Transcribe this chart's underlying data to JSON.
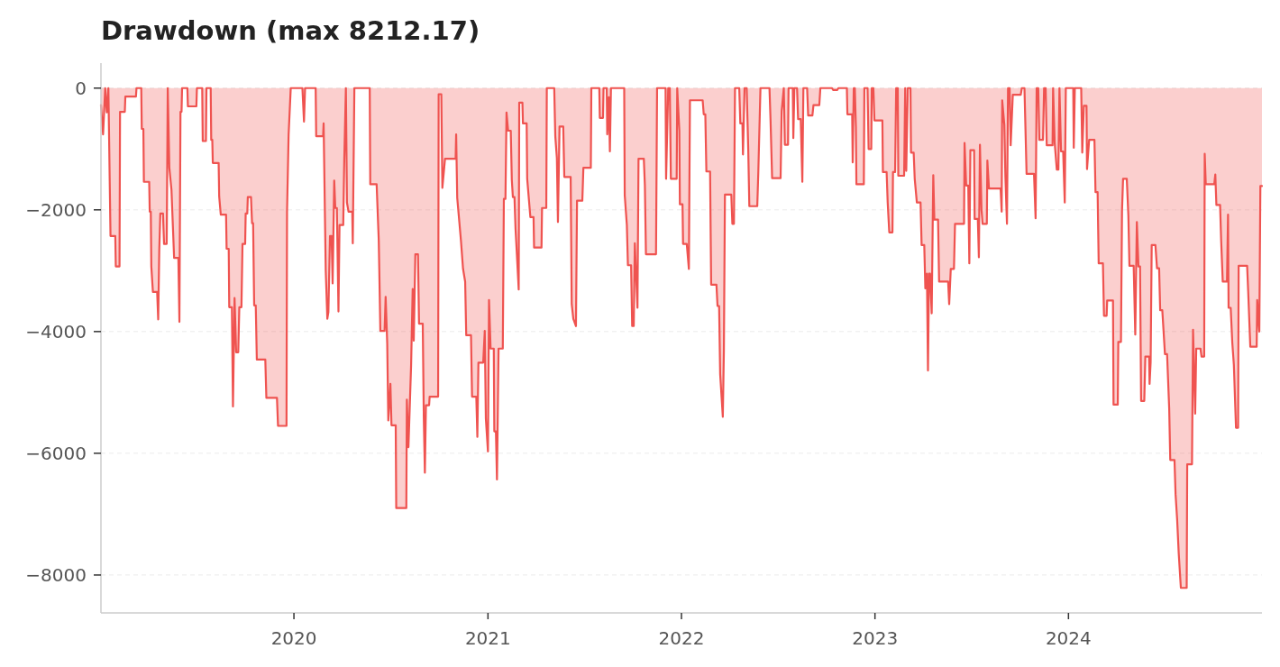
{
  "chart_data": {
    "type": "area",
    "title": "Drawdown (max 8212.17)",
    "color": "#ef5350",
    "grid": "y",
    "xlim": [
      "2019-01-02",
      "2024-12-31"
    ],
    "xticks": [
      {
        "value": "2020-01-01",
        "label": "2020"
      },
      {
        "value": "2021-01-01",
        "label": "2021"
      },
      {
        "value": "2022-01-01",
        "label": "2022"
      },
      {
        "value": "2023-01-01",
        "label": "2023"
      },
      {
        "value": "2024-01-01",
        "label": "2024"
      }
    ],
    "ylim": [
      -8623,
      411
    ],
    "yticks": [
      0,
      {
        "value": -2000,
        "label": "−2000"
      },
      {
        "value": -4000,
        "label": "−4000"
      },
      {
        "value": -6000,
        "label": "−6000"
      },
      {
        "value": -8000,
        "label": "−8000"
      }
    ],
    "x": [
      "2019-01-02",
      "2019-01-06",
      "2019-01-10",
      "2019-01-13",
      "2019-01-16",
      "2019-01-20",
      "2019-01-29",
      "2019-01-30",
      "2019-02-06",
      "2019-02-07",
      "2019-02-16",
      "2019-02-17",
      "2019-03-09",
      "2019-03-10",
      "2019-03-19",
      "2019-03-20",
      "2019-03-23",
      "2019-03-24",
      "2019-04-03",
      "2019-04-04",
      "2019-04-06",
      "2019-04-07",
      "2019-04-10",
      "2019-04-18",
      "2019-04-20",
      "2019-04-22",
      "2019-04-24",
      "2019-04-29",
      "2019-05-01",
      "2019-05-06",
      "2019-05-08",
      "2019-05-11",
      "2019-05-15",
      "2019-05-20",
      "2019-05-28",
      "2019-05-30",
      "2019-06-01",
      "2019-06-03",
      "2019-06-04",
      "2019-06-14",
      "2019-06-15",
      "2019-07-01",
      "2019-07-02",
      "2019-07-12",
      "2019-07-13",
      "2019-07-19",
      "2019-07-20",
      "2019-07-28",
      "2019-07-29",
      "2019-07-31",
      "2019-08-01",
      "2019-08-12",
      "2019-08-13",
      "2019-08-16",
      "2019-08-26",
      "2019-08-27",
      "2019-08-31",
      "2019-09-01",
      "2019-09-06",
      "2019-09-08",
      "2019-09-11",
      "2019-09-14",
      "2019-09-18",
      "2019-09-20",
      "2019-09-24",
      "2019-09-26",
      "2019-10-01",
      "2019-10-02",
      "2019-10-05",
      "2019-10-06",
      "2019-10-12",
      "2019-10-14",
      "2019-10-16",
      "2019-10-18",
      "2019-10-21",
      "2019-10-23",
      "2019-11-08",
      "2019-11-10",
      "2019-11-30",
      "2019-12-02",
      "2019-12-18",
      "2019-12-19",
      "2019-12-22",
      "2019-12-26",
      "2020-01-17",
      "2020-01-20",
      "2020-01-22",
      "2020-02-11",
      "2020-02-12",
      "2020-02-25",
      "2020-02-26",
      "2020-03-01",
      "2020-03-04",
      "2020-03-06",
      "2020-03-09",
      "2020-03-12",
      "2020-03-14",
      "2020-03-17",
      "2020-03-19",
      "2020-03-22",
      "2020-03-25",
      "2020-03-27",
      "2020-04-03",
      "2020-04-05",
      "2020-04-08",
      "2020-04-10",
      "2020-04-13",
      "2020-04-20",
      "2020-04-21",
      "2020-04-24",
      "2020-05-23",
      "2020-05-24",
      "2020-06-05",
      "2020-06-09",
      "2020-06-10",
      "2020-06-12",
      "2020-06-20",
      "2020-06-22",
      "2020-06-25",
      "2020-06-27",
      "2020-07-01",
      "2020-07-03",
      "2020-07-11",
      "2020-07-12",
      "2020-07-31",
      "2020-08-01",
      "2020-08-04",
      "2020-08-09",
      "2020-08-12",
      "2020-08-14",
      "2020-08-17",
      "2020-08-22",
      "2020-08-24",
      "2020-08-31",
      "2020-09-02",
      "2020-09-04",
      "2020-09-06",
      "2020-09-12",
      "2020-09-13",
      "2020-09-29",
      "2020-09-30",
      "2020-10-05",
      "2020-10-07",
      "2020-10-12",
      "2020-11-01",
      "2020-11-02",
      "2020-11-04",
      "2020-11-11",
      "2020-11-15",
      "2020-11-19",
      "2020-11-21",
      "2020-11-30",
      "2020-12-02",
      "2020-12-10",
      "2020-12-12",
      "2020-12-14",
      "2020-12-23",
      "2020-12-26",
      "2020-12-28",
      "2021-01-01",
      "2021-01-03",
      "2021-01-06",
      "2021-01-12",
      "2021-01-13",
      "2021-01-16",
      "2021-01-18",
      "2021-01-21",
      "2021-01-29",
      "2021-01-31",
      "2021-02-03",
      "2021-02-05",
      "2021-02-08",
      "2021-02-13",
      "2021-02-15",
      "2021-02-17",
      "2021-02-20",
      "2021-02-22",
      "2021-02-28",
      "2021-03-01",
      "2021-03-07",
      "2021-03-08",
      "2021-03-15",
      "2021-03-16",
      "2021-03-22",
      "2021-03-28",
      "2021-03-29",
      "2021-04-12",
      "2021-04-13",
      "2021-04-21",
      "2021-04-22",
      "2021-05-06",
      "2021-05-08",
      "2021-05-11",
      "2021-05-13",
      "2021-05-16",
      "2021-05-23",
      "2021-05-25",
      "2021-06-06",
      "2021-06-08",
      "2021-06-11",
      "2021-06-16",
      "2021-06-18",
      "2021-06-28",
      "2021-06-30",
      "2021-07-14",
      "2021-07-15",
      "2021-07-30",
      "2021-07-31",
      "2021-08-06",
      "2021-08-07",
      "2021-08-13",
      "2021-08-14",
      "2021-08-17",
      "2021-08-19",
      "2021-08-21",
      "2021-09-15",
      "2021-09-16",
      "2021-09-20",
      "2021-09-22",
      "2021-09-28",
      "2021-09-30",
      "2021-10-03",
      "2021-10-05",
      "2021-10-10",
      "2021-10-12",
      "2021-10-22",
      "2021-10-24",
      "2021-10-26",
      "2021-11-14",
      "2021-11-16",
      "2021-12-02",
      "2021-12-03",
      "2021-12-07",
      "2021-12-10",
      "2021-12-12",
      "2021-12-23",
      "2021-12-24",
      "2021-12-28",
      "2021-12-29",
      "2022-01-03",
      "2022-01-04",
      "2022-01-11",
      "2022-01-15",
      "2022-01-17",
      "2022-02-10",
      "2022-02-12",
      "2022-02-15",
      "2022-02-17",
      "2022-02-24",
      "2022-02-26",
      "2022-03-08",
      "2022-03-10",
      "2022-03-13",
      "2022-03-15",
      "2022-03-20",
      "2022-03-22",
      "2022-03-24",
      "2022-04-05",
      "2022-04-07",
      "2022-04-10",
      "2022-04-12",
      "2022-04-20",
      "2022-04-22",
      "2022-04-26",
      "2022-04-27",
      "2022-04-30",
      "2022-05-04",
      "2022-05-07",
      "2022-05-09",
      "2022-05-24",
      "2022-05-26",
      "2022-05-30",
      "2022-06-16",
      "2022-06-18",
      "2022-06-21",
      "2022-07-07",
      "2022-07-09",
      "2022-07-13",
      "2022-07-15",
      "2022-07-21",
      "2022-07-22",
      "2022-07-30",
      "2022-07-31",
      "2022-08-02",
      "2022-08-07",
      "2022-08-09",
      "2022-08-14",
      "2022-08-17",
      "2022-08-19",
      "2022-08-26",
      "2022-08-28",
      "2022-09-05",
      "2022-09-07",
      "2022-09-18",
      "2022-09-20",
      "2022-10-12",
      "2022-10-14",
      "2022-10-22",
      "2022-10-24",
      "2022-11-09",
      "2022-11-10",
      "2022-11-19",
      "2022-11-20",
      "2022-11-22",
      "2022-11-24",
      "2022-11-26",
      "2022-11-27",
      "2022-12-11",
      "2022-12-12",
      "2022-12-18",
      "2022-12-20",
      "2022-12-25",
      "2022-12-26",
      "2022-12-29",
      "2022-12-31",
      "2023-01-15",
      "2023-01-16",
      "2023-01-23",
      "2023-01-25",
      "2023-01-28",
      "2023-02-03",
      "2023-02-04",
      "2023-02-08",
      "2023-02-10",
      "2023-02-13",
      "2023-02-14",
      "2023-02-25",
      "2023-02-27",
      "2023-03-01",
      "2023-03-04",
      "2023-03-09",
      "2023-03-10",
      "2023-03-15",
      "2023-03-17",
      "2023-03-21",
      "2023-03-28",
      "2023-03-30",
      "2023-04-04",
      "2023-04-06",
      "2023-04-09",
      "2023-04-11",
      "2023-04-13",
      "2023-04-15",
      "2023-04-18",
      "2023-04-21",
      "2023-04-23",
      "2023-04-30",
      "2023-05-02",
      "2023-05-19",
      "2023-05-21",
      "2023-05-24",
      "2023-05-30",
      "2023-06-01",
      "2023-06-18",
      "2023-06-19",
      "2023-06-22",
      "2023-06-26",
      "2023-06-28",
      "2023-06-30",
      "2023-07-07",
      "2023-07-08",
      "2023-07-14",
      "2023-07-16",
      "2023-07-18",
      "2023-07-21",
      "2023-07-23",
      "2023-07-31",
      "2023-08-01",
      "2023-08-04",
      "2023-08-26",
      "2023-08-28",
      "2023-08-29",
      "2023-09-02",
      "2023-09-04",
      "2023-09-07",
      "2023-09-09",
      "2023-09-12",
      "2023-09-14",
      "2023-09-18",
      "2023-10-03",
      "2023-10-05",
      "2023-10-10",
      "2023-10-14",
      "2023-10-28",
      "2023-10-31",
      "2023-11-02",
      "2023-11-05",
      "2023-11-07",
      "2023-11-14",
      "2023-11-16",
      "2023-11-19",
      "2023-11-21",
      "2023-12-02",
      "2023-12-03",
      "2023-12-06",
      "2023-12-10",
      "2023-12-13",
      "2023-12-15",
      "2023-12-18",
      "2023-12-22",
      "2023-12-25",
      "2023-12-27",
      "2024-01-10",
      "2024-01-11",
      "2024-01-13",
      "2024-01-25",
      "2024-01-27",
      "2024-01-30",
      "2024-02-04",
      "2024-02-05",
      "2024-02-09",
      "2024-02-19",
      "2024-02-21",
      "2024-02-25",
      "2024-02-27",
      "2024-03-06",
      "2024-03-08",
      "2024-03-13",
      "2024-03-14",
      "2024-03-25",
      "2024-03-26",
      "2024-04-03",
      "2024-04-04",
      "2024-04-09",
      "2024-04-11",
      "2024-04-13",
      "2024-04-20",
      "2024-04-23",
      "2024-04-25",
      "2024-05-03",
      "2024-05-06",
      "2024-05-09",
      "2024-05-12",
      "2024-05-15",
      "2024-05-17",
      "2024-05-23",
      "2024-05-25",
      "2024-06-01",
      "2024-06-02",
      "2024-06-04",
      "2024-06-06",
      "2024-06-13",
      "2024-06-16",
      "2024-06-20",
      "2024-06-22",
      "2024-06-26",
      "2024-07-01",
      "2024-07-05",
      "2024-07-09",
      "2024-07-11",
      "2024-07-19",
      "2024-07-21",
      "2024-07-24",
      "2024-07-27",
      "2024-07-31",
      "2024-08-11",
      "2024-08-12",
      "2024-08-21",
      "2024-08-23",
      "2024-08-27",
      "2024-08-29",
      "2024-09-06",
      "2024-09-08",
      "2024-09-13",
      "2024-09-14",
      "2024-09-16",
      "2024-10-02",
      "2024-10-04",
      "2024-10-06",
      "2024-10-13",
      "2024-10-15",
      "2024-10-18",
      "2024-10-26",
      "2024-10-28",
      "2024-10-29",
      "2024-11-02",
      "2024-11-05",
      "2024-11-08",
      "2024-11-12",
      "2024-11-16",
      "2024-11-17",
      "2024-12-03",
      "2024-12-05",
      "2024-12-09",
      "2024-12-21",
      "2024-12-22",
      "2024-12-26",
      "2024-12-28",
      "2024-12-31"
    ],
    "values": [
      -280,
      -760,
      0,
      -400,
      0,
      -2430,
      -2430,
      -2930,
      -2930,
      -390,
      -390,
      -140,
      -140,
      0,
      0,
      -670,
      -670,
      -1540,
      -1540,
      -2030,
      -2030,
      -2930,
      -3350,
      -3350,
      -3800,
      -2660,
      -2060,
      -2060,
      -2560,
      -2560,
      0,
      -1310,
      -1670,
      -2790,
      -2790,
      -3840,
      -390,
      -390,
      0,
      0,
      -300,
      -300,
      0,
      0,
      -870,
      -870,
      0,
      0,
      -850,
      -850,
      -1230,
      -1230,
      -1780,
      -2080,
      -2080,
      -2640,
      -2640,
      -3600,
      -3600,
      -5230,
      -3450,
      -4340,
      -4340,
      -3600,
      -3600,
      -2560,
      -2560,
      -2060,
      -2060,
      -1790,
      -1790,
      -2220,
      -2220,
      -3570,
      -3570,
      -4460,
      -4460,
      -5090,
      -5090,
      -5550,
      -5550,
      -2030,
      -760,
      0,
      0,
      -550,
      0,
      0,
      -790,
      -790,
      -580,
      -3000,
      -3790,
      -3680,
      -2430,
      -2430,
      -3210,
      -1520,
      -1970,
      -1970,
      -3670,
      -2250,
      -2250,
      -1150,
      0,
      -1880,
      -2030,
      -2030,
      -2550,
      0,
      0,
      -1580,
      -1580,
      -2500,
      -2970,
      -3990,
      -3990,
      -3430,
      -4200,
      -5460,
      -4860,
      -5540,
      -5540,
      -6900,
      -6900,
      -5120,
      -5900,
      -4560,
      -3300,
      -4150,
      -2730,
      -2730,
      -3870,
      -3870,
      -5430,
      -6320,
      -5210,
      -5210,
      -5070,
      -5070,
      -100,
      -100,
      -1640,
      -1160,
      -1160,
      -760,
      -1800,
      -2500,
      -2970,
      -3180,
      -4060,
      -4060,
      -5070,
      -5070,
      -5730,
      -4510,
      -4510,
      -3990,
      -5430,
      -5970,
      -3480,
      -4280,
      -4280,
      -5640,
      -5640,
      -6430,
      -4280,
      -4280,
      -1820,
      -1820,
      -400,
      -700,
      -700,
      -1510,
      -1790,
      -1790,
      -2310,
      -3310,
      -240,
      -240,
      -580,
      -580,
      -1490,
      -2120,
      -2120,
      -2620,
      -2620,
      -1970,
      -1970,
      0,
      0,
      -790,
      -1150,
      -2200,
      -630,
      -630,
      -1460,
      -1460,
      -3550,
      -3790,
      -3910,
      -1850,
      -1850,
      -1310,
      -1310,
      0,
      0,
      -490,
      -490,
      0,
      0,
      -760,
      -150,
      -1040,
      0,
      0,
      -1760,
      -2250,
      -2910,
      -2910,
      -3910,
      -3910,
      -2550,
      -3610,
      -1160,
      -1160,
      -1600,
      -2730,
      -2730,
      0,
      0,
      -1490,
      0,
      0,
      -1490,
      -1490,
      0,
      -700,
      -1910,
      -1910,
      -2560,
      -2560,
      -2970,
      -200,
      -200,
      -430,
      -430,
      -1370,
      -1370,
      -3230,
      -3230,
      -3580,
      -3580,
      -4700,
      -5400,
      -4320,
      -1750,
      -1750,
      -2230,
      -2230,
      0,
      0,
      -580,
      -580,
      -1090,
      0,
      0,
      -1020,
      -1940,
      -1940,
      -1370,
      0,
      0,
      -520,
      -1480,
      -1480,
      -380,
      0,
      -930,
      -930,
      0,
      0,
      -820,
      0,
      0,
      -510,
      -510,
      -1540,
      0,
      0,
      -450,
      -450,
      -280,
      -280,
      0,
      0,
      -30,
      -30,
      0,
      0,
      -430,
      -430,
      -1220,
      0,
      0,
      -640,
      -1580,
      -1580,
      0,
      0,
      -1000,
      -1000,
      0,
      0,
      -530,
      -530,
      -1380,
      -1380,
      -1880,
      -2370,
      -2370,
      -1380,
      -1380,
      0,
      0,
      -1440,
      -1440,
      0,
      -1360,
      0,
      0,
      -1060,
      -1060,
      -1490,
      -1880,
      -1880,
      -2580,
      -2580,
      -3290,
      -3050,
      -4640,
      -3050,
      -3050,
      -3700,
      -1430,
      -2160,
      -2160,
      -3180,
      -3180,
      -3550,
      -2970,
      -2970,
      -2230,
      -2230,
      -900,
      -1600,
      -1600,
      -2880,
      -1020,
      -1020,
      -2150,
      -2150,
      -2780,
      -930,
      -2000,
      -2230,
      -2230,
      -1190,
      -1650,
      -1650,
      -2030,
      -200,
      -600,
      -1460,
      -2230,
      0,
      0,
      -940,
      -110,
      -110,
      0,
      0,
      -1410,
      -1410,
      -2140,
      0,
      0,
      -850,
      -850,
      0,
      0,
      -940,
      -940,
      0,
      -900,
      -1340,
      -1340,
      0,
      -1040,
      -1040,
      -1880,
      0,
      0,
      -980,
      0,
      0,
      -1060,
      -290,
      -290,
      -1330,
      -850,
      -850,
      -1710,
      -1710,
      -2880,
      -2880,
      -3740,
      -3740,
      -3490,
      -3490,
      -5200,
      -5200,
      -4170,
      -4170,
      -2020,
      -1490,
      -1490,
      -2100,
      -2920,
      -2920,
      -4050,
      -2200,
      -2930,
      -2930,
      -5140,
      -5140,
      -4410,
      -4410,
      -4860,
      -4500,
      -2580,
      -2580,
      -2960,
      -2960,
      -3650,
      -3650,
      -4370,
      -4370,
      -5260,
      -6110,
      -6110,
      -6670,
      -7090,
      -7650,
      -8212.17,
      -8212.17,
      -6180,
      -6180,
      -3970,
      -5350,
      -4280,
      -4280,
      -4410,
      -4410,
      -1080,
      -1580,
      -1580,
      -1420,
      -1920,
      -1920,
      -2500,
      -3180,
      -3180,
      -2080,
      -3610,
      -3610,
      -4180,
      -4550,
      -5580,
      -5580,
      -2920,
      -2920,
      -3340,
      -4250,
      -4250,
      -3480,
      -4000,
      -1610,
      -1610
    ]
  }
}
